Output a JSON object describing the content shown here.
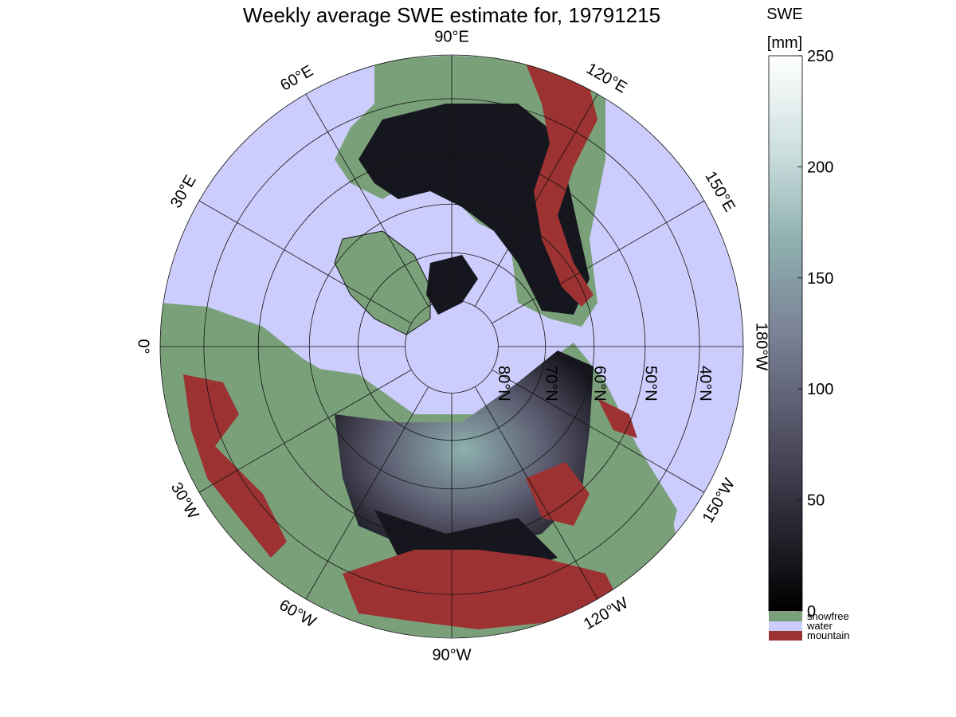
{
  "title": "Weekly average SWE estimate for, 19791215",
  "map": {
    "projection": "north-polar-stereographic",
    "longitude_labels": [
      {
        "text": "90°W",
        "lon_deg": -90
      },
      {
        "text": "60°W",
        "lon_deg": -60
      },
      {
        "text": "30°W",
        "lon_deg": -30
      },
      {
        "text": "0°",
        "lon_deg": 0
      },
      {
        "text": "30°E",
        "lon_deg": 30
      },
      {
        "text": "60°E",
        "lon_deg": 60
      },
      {
        "text": "90°E",
        "lon_deg": 90
      },
      {
        "text": "120°E",
        "lon_deg": 120
      },
      {
        "text": "150°E",
        "lon_deg": 150
      },
      {
        "text": "180°W",
        "lon_deg": 180
      },
      {
        "text": "150°W",
        "lon_deg": -150
      },
      {
        "text": "120°W",
        "lon_deg": -120
      }
    ],
    "latitude_labels": [
      {
        "text": "80°N",
        "lat_deg": 80
      },
      {
        "text": "70°N",
        "lat_deg": 70
      },
      {
        "text": "60°N",
        "lat_deg": 60
      },
      {
        "text": "50°N",
        "lat_deg": 50
      },
      {
        "text": "40°N",
        "lat_deg": 40
      }
    ],
    "colors": {
      "water": "#cccdfc",
      "snowfree": "#7aa07a",
      "mountain": "#9c3232",
      "snow_low": "#16161e",
      "snow_mid": "#5a5a6e",
      "snow_high": "#8eb0b0"
    }
  },
  "colorbar": {
    "title_line1": "SWE",
    "title_line2": "[mm]",
    "range": [
      0,
      250
    ],
    "ticks": [
      {
        "value": 0,
        "label": "0"
      },
      {
        "value": 50,
        "label": "50"
      },
      {
        "value": 100,
        "label": "100"
      },
      {
        "value": 150,
        "label": "150"
      },
      {
        "value": 200,
        "label": "200"
      },
      {
        "value": 250,
        "label": "250"
      }
    ],
    "gradient_colors": [
      "#000000",
      "#2a2a36",
      "#555568",
      "#7a8296",
      "#8fb0b0",
      "#cfe0e0",
      "#ffffff"
    ],
    "categories": [
      {
        "label": "snowfree",
        "color": "#7aa07a"
      },
      {
        "label": "water",
        "color": "#cccdfc"
      },
      {
        "label": "mountain",
        "color": "#9c3232"
      }
    ]
  }
}
